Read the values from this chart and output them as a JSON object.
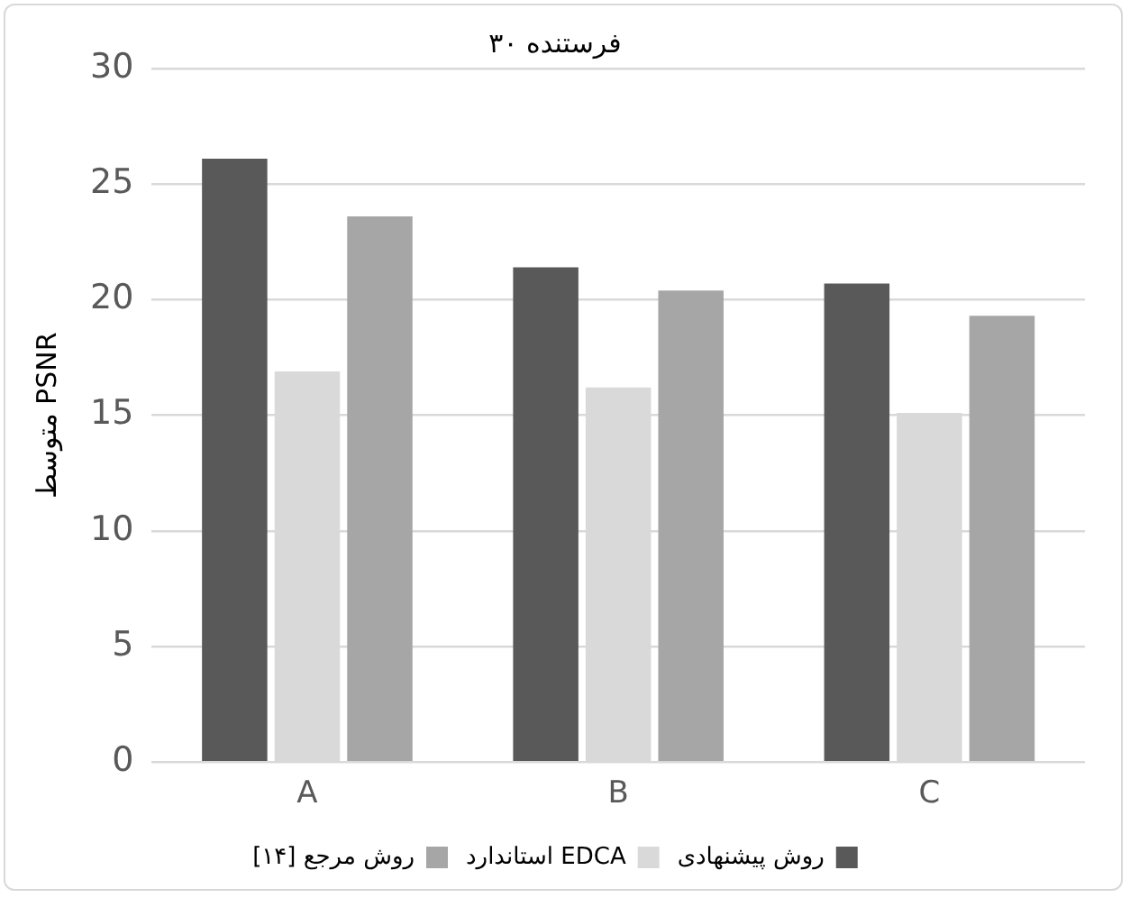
{
  "chart_data": {
    "type": "bar",
    "title": "۳۰ فرستنده",
    "ylabel": "متوسط PSNR",
    "categories": [
      "A",
      "B",
      "C"
    ],
    "series": [
      {
        "name": "روش پیشنهادی",
        "color": "#595959",
        "values": [
          26.1,
          21.4,
          20.7
        ]
      },
      {
        "name": "استاندارد EDCA",
        "color": "#d9d9d9",
        "values": [
          16.9,
          16.2,
          15.1
        ]
      },
      {
        "name": "روش مرجع [۱۴]",
        "color": "#a6a6a6",
        "values": [
          23.6,
          20.4,
          19.3
        ]
      }
    ],
    "ylim": [
      0,
      30
    ],
    "yticks": [
      0,
      5,
      10,
      15,
      20,
      25,
      30
    ],
    "grid": "y",
    "legend": "bottom"
  }
}
